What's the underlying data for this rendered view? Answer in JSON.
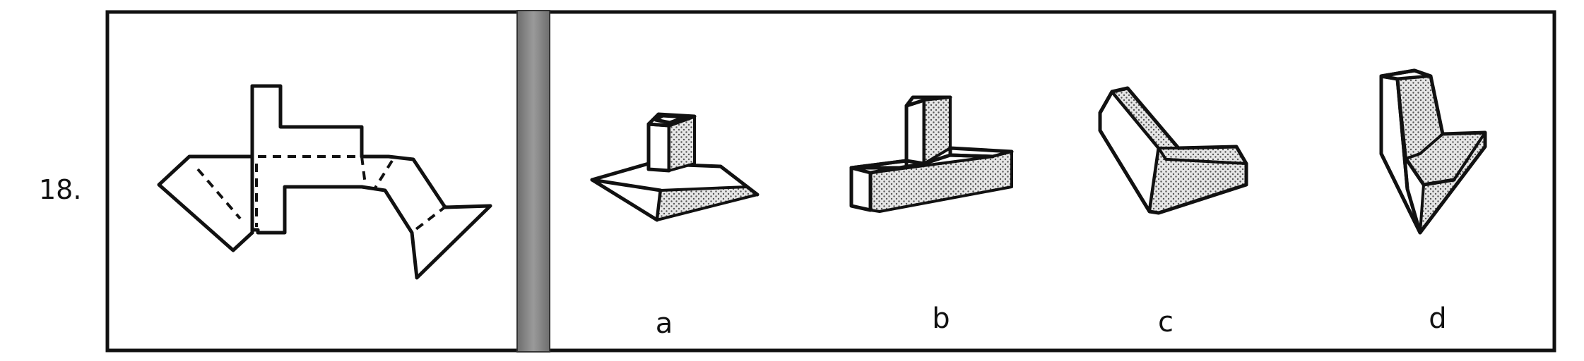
{
  "question_number": "18.",
  "options": [
    {
      "letter": "a"
    },
    {
      "letter": "b"
    },
    {
      "letter": "c"
    },
    {
      "letter": "d"
    }
  ],
  "colors": {
    "ink": "#111111",
    "separator": "#7f7f7f",
    "background": "#ffffff"
  },
  "icons": {
    "net": "unfolded-net-icon",
    "a": "pedestal-solid-icon",
    "b": "t-block-solid-icon",
    "c": "l-bar-solid-icon",
    "d": "l-wedge-solid-icon"
  }
}
